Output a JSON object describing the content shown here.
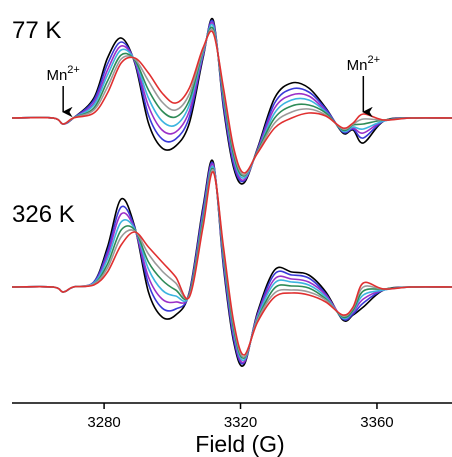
{
  "chart_data": [
    {
      "type": "line",
      "label": "77 K",
      "x": [
        3253,
        3265,
        3268,
        3271,
        3277,
        3281,
        3285,
        3289,
        3293,
        3297,
        3301,
        3305,
        3309,
        3312,
        3315,
        3318,
        3321,
        3325,
        3330,
        3335,
        3340,
        3345,
        3350,
        3353,
        3356,
        3362,
        3370,
        3382
      ],
      "xlim": [
        3253,
        3382
      ],
      "ylim": [
        -112,
        118
      ],
      "annotations": [
        {
          "text": "Mn",
          "sup": "2+",
          "x": 3268
        },
        {
          "text": "Mn",
          "sup": "2+",
          "x": 3356
        }
      ],
      "series": [
        {
          "color": "#000000",
          "values": [
            0,
            0,
            -6,
            0,
            20,
            60,
            80,
            55,
            -5,
            -30,
            -28,
            -5,
            60,
            98,
            10,
            -50,
            -65,
            -30,
            20,
            35,
            30,
            10,
            -15,
            -12,
            -25,
            -3,
            0,
            0
          ]
        },
        {
          "color": "#3a3ad8",
          "values": [
            0,
            0,
            -6,
            0,
            18,
            54,
            76,
            56,
            3,
            -21,
            -21,
            1,
            62,
            96,
            13,
            -47,
            -63,
            -31,
            15,
            29,
            26,
            9,
            -14,
            -11,
            -20,
            -3,
            0,
            0
          ]
        },
        {
          "color": "#9b30c8",
          "values": [
            0,
            0,
            -6,
            0,
            15,
            48,
            72,
            57,
            12,
            -12,
            -14,
            7,
            63,
            94,
            17,
            -43,
            -62,
            -32,
            10,
            23,
            22,
            7,
            -13,
            -10,
            -15,
            -3,
            0,
            0
          ]
        },
        {
          "color": "#3cb4e0",
          "values": [
            0,
            0,
            -6,
            0,
            13,
            43,
            68,
            58,
            20,
            -3,
            -7,
            13,
            65,
            92,
            20,
            -40,
            -60,
            -33,
            5,
            18,
            18,
            6,
            -13,
            -9,
            -11,
            -3,
            0,
            0
          ]
        },
        {
          "color": "#2e8b57",
          "values": [
            0,
            0,
            -6,
            0,
            10,
            37,
            63,
            58,
            28,
            7,
            1,
            18,
            67,
            89,
            23,
            -37,
            -58,
            -33,
            0,
            12,
            13,
            5,
            -12,
            -7,
            -6,
            -2,
            0,
            0
          ]
        },
        {
          "color": "#9a9a9a",
          "values": [
            0,
            0,
            -6,
            0,
            8,
            31,
            59,
            59,
            37,
            16,
            8,
            24,
            68,
            87,
            27,
            -33,
            -57,
            -34,
            -5,
            6,
            9,
            3,
            -11,
            -6,
            -1,
            -2,
            0,
            0
          ]
        },
        {
          "color": "#e03030",
          "values": [
            0,
            0,
            -6,
            0,
            5,
            25,
            55,
            60,
            45,
            25,
            15,
            30,
            70,
            85,
            30,
            -30,
            -55,
            -35,
            -10,
            0,
            5,
            2,
            -10,
            -5,
            4,
            -2,
            0,
            0
          ]
        }
      ]
    },
    {
      "type": "line",
      "label": "326 K",
      "xlabel": "Field (G)",
      "x": [
        3253,
        3265,
        3268,
        3271,
        3277,
        3281,
        3285,
        3289,
        3293,
        3297,
        3301,
        3305,
        3309,
        3312,
        3315,
        3318,
        3321,
        3325,
        3330,
        3335,
        3340,
        3345,
        3350,
        3353,
        3356,
        3362,
        3370,
        3382
      ],
      "xlim": [
        3253,
        3382
      ],
      "ylim": [
        -113,
        117
      ],
      "xticks": [
        3280,
        3320,
        3360
      ],
      "series": [
        {
          "color": "#000000",
          "values": [
            0,
            0,
            -5,
            0,
            5,
            40,
            88,
            60,
            -5,
            -30,
            -28,
            -5,
            80,
            125,
            20,
            -55,
            -78,
            -25,
            17,
            15,
            12,
            -5,
            -33,
            -28,
            -20,
            -3,
            0,
            0
          ]
        },
        {
          "color": "#3a3ad8",
          "values": [
            0,
            0,
            -5,
            0,
            5,
            36,
            80,
            59,
            3,
            -21,
            -22,
            -6,
            77,
            123,
            23,
            -52,
            -76,
            -27,
            13,
            12,
            9,
            -7,
            -32,
            -27,
            -16,
            -3,
            0,
            0
          ]
        },
        {
          "color": "#9b30c8",
          "values": [
            0,
            0,
            -5,
            0,
            4,
            32,
            73,
            58,
            10,
            -12,
            -15,
            -7,
            73,
            122,
            27,
            -48,
            -75,
            -28,
            8,
            8,
            5,
            -8,
            -31,
            -25,
            -12,
            -3,
            0,
            0
          ]
        },
        {
          "color": "#3cb4e0",
          "values": [
            0,
            0,
            -5,
            0,
            4,
            28,
            65,
            58,
            18,
            -3,
            -9,
            -8,
            70,
            120,
            30,
            -45,
            -73,
            -30,
            4,
            5,
            2,
            -10,
            -31,
            -24,
            -8,
            -3,
            0,
            0
          ]
        },
        {
          "color": "#2e8b57",
          "values": [
            0,
            0,
            -5,
            0,
            3,
            23,
            57,
            57,
            25,
            7,
            -3,
            -8,
            67,
            118,
            33,
            -42,
            -71,
            -32,
            -1,
            1,
            -1,
            -12,
            -30,
            -23,
            -4,
            -2,
            0,
            0
          ]
        },
        {
          "color": "#9a9a9a",
          "values": [
            0,
            0,
            -5,
            0,
            3,
            19,
            50,
            56,
            33,
            16,
            4,
            -9,
            63,
            117,
            37,
            -38,
            -70,
            -33,
            -6,
            -3,
            -5,
            -13,
            -29,
            -21,
            0,
            -2,
            0,
            0
          ]
        },
        {
          "color": "#e03030",
          "values": [
            0,
            0,
            -5,
            0,
            2,
            15,
            42,
            55,
            40,
            25,
            10,
            -10,
            60,
            115,
            40,
            -35,
            -68,
            -35,
            -10,
            -6,
            -8,
            -15,
            -28,
            -20,
            4,
            -2,
            0,
            0
          ]
        }
      ]
    }
  ]
}
